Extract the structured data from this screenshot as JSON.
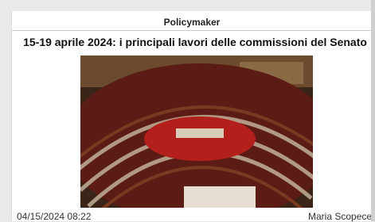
{
  "header": {
    "source": "Policymaker"
  },
  "article": {
    "title": "15-19 aprile 2024: i principali lavori delle commissioni del Senato",
    "date": "04/15/2024 08:22",
    "author": "Maria Scopece"
  }
}
